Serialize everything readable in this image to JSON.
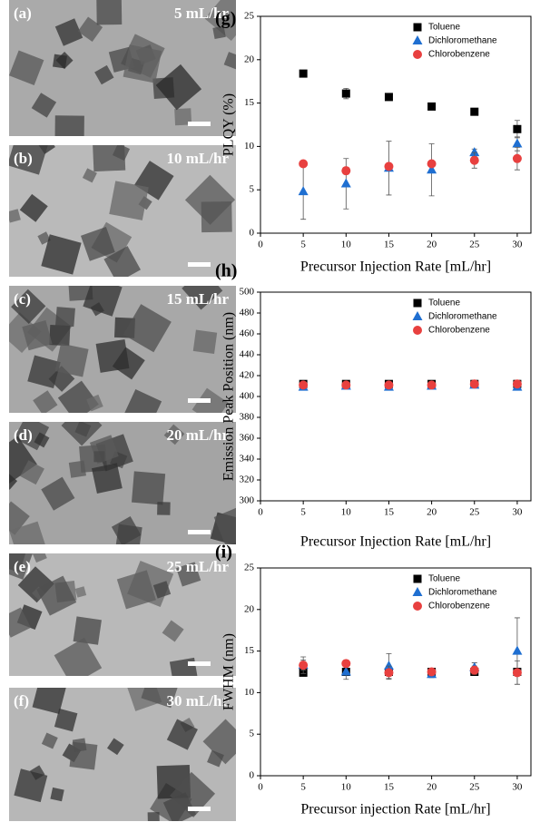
{
  "image_panels": [
    {
      "label": "(a)",
      "rate": "5 mL/hr"
    },
    {
      "label": "(b)",
      "rate": "10 mL/hr"
    },
    {
      "label": "(c)",
      "rate": "15 mL/hr"
    },
    {
      "label": "(d)",
      "rate": "20 mL/hr"
    },
    {
      "label": "(e)",
      "rate": "25 mL/hr"
    },
    {
      "label": "(f)",
      "rate": "30 mL/hr"
    }
  ],
  "chart_data": [
    {
      "type": "scatter",
      "panel": "(g)",
      "x_label": "Precursor Injection Rate [mL/hr]",
      "y_label": "PLQY (%)",
      "x": [
        5,
        10,
        15,
        20,
        25,
        30
      ],
      "xlim": [
        0,
        31.6
      ],
      "xticks": [
        0,
        5,
        10,
        15,
        20,
        25,
        30
      ],
      "ylim": [
        0,
        25
      ],
      "yticks": [
        0,
        5,
        10,
        15,
        20,
        25
      ],
      "grid": false,
      "legend": "upper right",
      "series": [
        {
          "name": "Toluene",
          "color": "#000000",
          "marker": "square",
          "values": [
            18.4,
            16.1,
            15.7,
            14.6,
            14.0,
            12.0
          ],
          "errors": [
            0.3,
            0.6,
            0.2,
            0.2,
            0.2,
            1.0
          ]
        },
        {
          "name": "Dichloromethane",
          "color": "#1f6fd1",
          "marker": "triangle",
          "values": [
            4.8,
            5.7,
            7.5,
            7.3,
            9.3,
            10.3
          ],
          "errors": [
            3.2,
            2.9,
            3.1,
            3.0,
            0.4,
            0.8
          ]
        },
        {
          "name": "Chlorobenzene",
          "color": "#e8403f",
          "marker": "circle",
          "values": [
            8.0,
            7.2,
            7.7,
            8.0,
            8.4,
            8.6
          ],
          "errors": [
            0.2,
            0.4,
            0.3,
            0.3,
            0.9,
            1.3
          ]
        }
      ]
    },
    {
      "type": "scatter",
      "panel": "(h)",
      "x_label": "Precursor Injection Rate [mL/hr]",
      "y_label": "Emission Peak Position (nm)",
      "x": [
        5,
        10,
        15,
        20,
        25,
        30
      ],
      "xlim": [
        0,
        31.6
      ],
      "xticks": [
        0,
        5,
        10,
        15,
        20,
        25,
        30
      ],
      "ylim": [
        300,
        500
      ],
      "yticks": [
        300,
        320,
        340,
        360,
        380,
        400,
        420,
        440,
        460,
        480,
        500
      ],
      "grid": false,
      "legend": "upper right",
      "series": [
        {
          "name": "Toluene",
          "color": "#000000",
          "marker": "square",
          "values": [
            412,
            412,
            412,
            412,
            412,
            412
          ]
        },
        {
          "name": "Dichloromethane",
          "color": "#1f6fd1",
          "marker": "triangle",
          "values": [
            409,
            410,
            409,
            410,
            411,
            409
          ]
        },
        {
          "name": "Chlorobenzene",
          "color": "#e8403f",
          "marker": "circle",
          "values": [
            411,
            411,
            411,
            411,
            412,
            412
          ]
        }
      ]
    },
    {
      "type": "scatter",
      "panel": "(i)",
      "x_label": "Precursor injection Rate [mL/hr]",
      "y_label": "FWHM (nm)",
      "x": [
        5,
        10,
        15,
        20,
        25,
        30
      ],
      "xlim": [
        0,
        31.6
      ],
      "xticks": [
        0,
        5,
        10,
        15,
        20,
        25,
        30
      ],
      "ylim": [
        0,
        25
      ],
      "yticks": [
        0,
        5,
        10,
        15,
        20,
        25
      ],
      "grid": false,
      "legend": "upper right",
      "series": [
        {
          "name": "Toluene",
          "color": "#000000",
          "marker": "square",
          "values": [
            12.4,
            12.5,
            12.5,
            12.5,
            12.5,
            12.5
          ]
        },
        {
          "name": "Dichloromethane",
          "color": "#1f6fd1",
          "marker": "triangle",
          "values": [
            13.3,
            12.5,
            13.2,
            12.2,
            13.0,
            15.0
          ],
          "errors": [
            1.0,
            0.9,
            1.5,
            0.4,
            0.6,
            4.0
          ]
        },
        {
          "name": "Chlorobenzene",
          "color": "#e8403f",
          "marker": "circle",
          "values": [
            13.3,
            13.5,
            12.4,
            12.5,
            12.7,
            12.4
          ],
          "errors": [
            0.6,
            0.4,
            0.8,
            0.3,
            0.5,
            1.4
          ]
        }
      ]
    }
  ]
}
